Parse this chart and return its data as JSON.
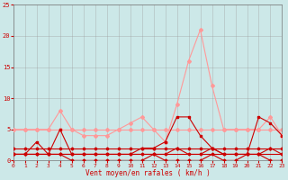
{
  "x": [
    0,
    1,
    2,
    3,
    4,
    5,
    6,
    7,
    8,
    9,
    10,
    11,
    12,
    13,
    14,
    15,
    16,
    17,
    18,
    19,
    20,
    21,
    22,
    23
  ],
  "wind_gust_high": [
    5,
    5,
    5,
    5,
    8,
    5,
    4,
    4,
    4,
    5,
    6,
    7,
    5,
    3,
    9,
    16,
    21,
    12,
    5,
    5,
    5,
    5,
    7,
    4
  ],
  "wind_gust_low": [
    1,
    1,
    3,
    1,
    5,
    1,
    1,
    1,
    1,
    1,
    1,
    2,
    2,
    3,
    7,
    7,
    4,
    2,
    1,
    1,
    1,
    7,
    6,
    4
  ],
  "wind_avg_high": [
    1,
    1,
    1,
    1,
    1,
    1,
    1,
    1,
    1,
    1,
    1,
    1,
    1,
    1,
    2,
    1,
    1,
    2,
    1,
    1,
    1,
    1,
    2,
    1
  ],
  "wind_avg_low": [
    1,
    1,
    1,
    1,
    1,
    0,
    0,
    0,
    0,
    0,
    0,
    0,
    1,
    0,
    0,
    0,
    0,
    1,
    0,
    0,
    1,
    1,
    0,
    0
  ],
  "flat_pink": [
    5,
    5,
    5,
    5,
    5,
    5,
    5,
    5,
    5,
    5,
    5,
    5,
    5,
    5,
    5,
    5,
    5,
    5,
    5,
    5,
    5,
    5,
    5,
    5
  ],
  "flat_red1": [
    2,
    2,
    2,
    2,
    2,
    2,
    2,
    2,
    2,
    2,
    2,
    2,
    2,
    2,
    2,
    2,
    2,
    2,
    2,
    2,
    2,
    2,
    2,
    2
  ],
  "flat_red2": [
    1,
    1,
    1,
    1,
    1,
    1,
    1,
    1,
    1,
    1,
    1,
    1,
    1,
    1,
    1,
    1,
    1,
    1,
    1,
    1,
    1,
    1,
    1,
    1
  ],
  "xlabel": "Vent moyen/en rafales ( km/h )",
  "ylim": [
    0,
    25
  ],
  "xlim": [
    0,
    23
  ],
  "bg_color": "#cce8e8",
  "grid_color": "#999999",
  "color_pink": "#ff9999",
  "color_dark_red": "#cc0000"
}
